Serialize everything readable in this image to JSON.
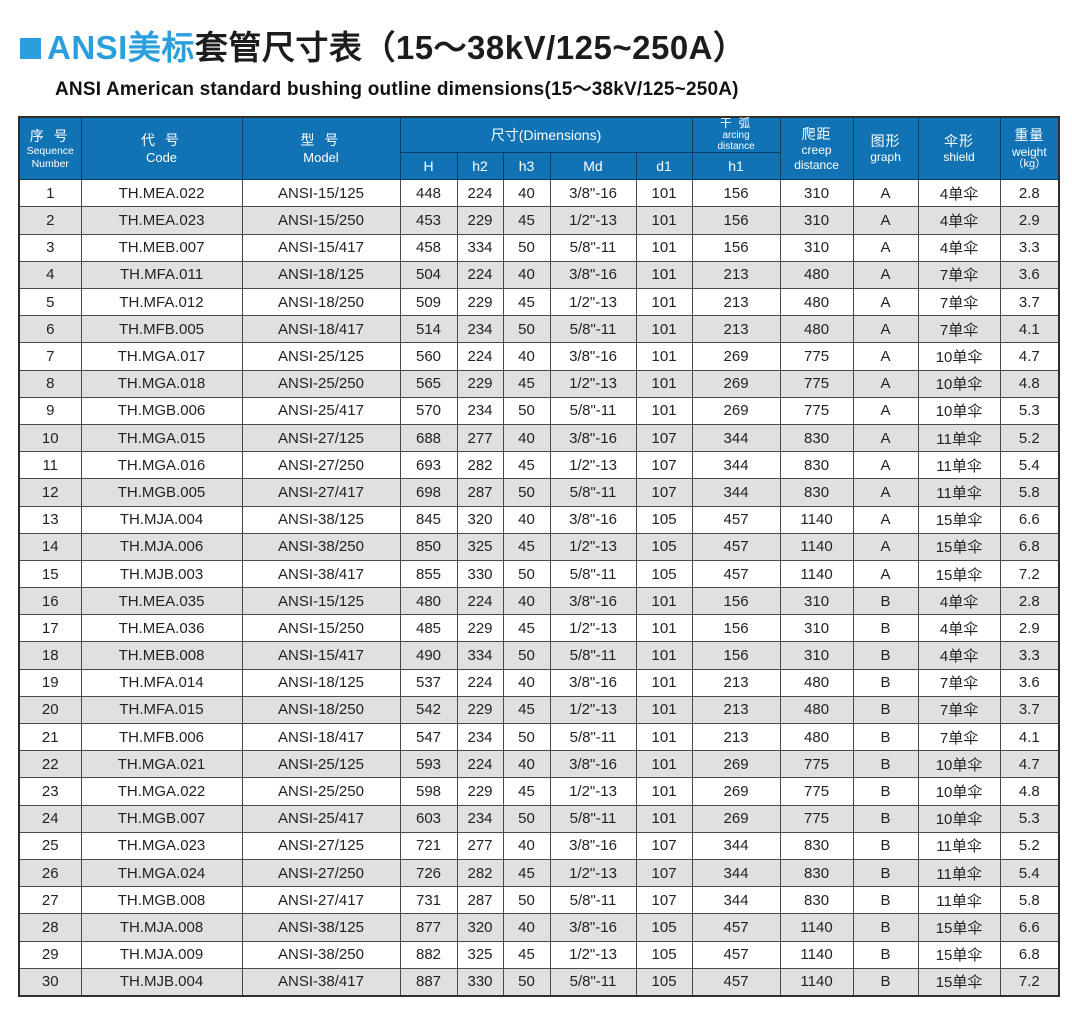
{
  "page": {
    "title_highlight": "ANSI美标",
    "title_rest": "套管尺寸表（15～38kV/125~250A）",
    "subtitle": "ANSI American standard  bushing outline dimensions(15～38kV/125~250A)"
  },
  "colors": {
    "header_blue": "#1172b4",
    "title_blue": "#2b9ede",
    "stripe_gray": "#e0e0e0"
  },
  "table": {
    "headers": {
      "seq_cn": "序 号",
      "seq_en1": "Sequence",
      "seq_en2": "Number",
      "code_cn": "代 号",
      "code_en": "Code",
      "model_cn": "型 号",
      "model_en": "Model",
      "dims_group": "尺寸(Dimensions)",
      "col_h": "H",
      "col_h2": "h2",
      "col_h3": "h3",
      "col_md": "Md",
      "col_d1": "d1",
      "arc_cn": "干 弧",
      "arc_en1": "arcing",
      "arc_en2": "distance",
      "col_h1": "h1",
      "creep_cn": "爬距",
      "creep_en1": "creep",
      "creep_en2": "distance",
      "graph_cn": "图形",
      "graph_en": "graph",
      "shield_cn": "伞形",
      "shield_en": "shield",
      "weight_cn": "重量",
      "weight_en": "weight",
      "weight_unit": "（kg）"
    },
    "rows": [
      [
        "1",
        "TH.MEA.022",
        "ANSI-15/125",
        "448",
        "224",
        "40",
        "3/8\"-16",
        "101",
        "156",
        "310",
        "A",
        "4单伞",
        "2.8"
      ],
      [
        "2",
        "TH.MEA.023",
        "ANSI-15/250",
        "453",
        "229",
        "45",
        "1/2\"-13",
        "101",
        "156",
        "310",
        "A",
        "4单伞",
        "2.9"
      ],
      [
        "3",
        "TH.MEB.007",
        "ANSI-15/417",
        "458",
        "334",
        "50",
        "5/8\"-11",
        "101",
        "156",
        "310",
        "A",
        "4单伞",
        "3.3"
      ],
      [
        "4",
        "TH.MFA.011",
        "ANSI-18/125",
        "504",
        "224",
        "40",
        "3/8\"-16",
        "101",
        "213",
        "480",
        "A",
        "7单伞",
        "3.6"
      ],
      [
        "5",
        "TH.MFA.012",
        "ANSI-18/250",
        "509",
        "229",
        "45",
        "1/2\"-13",
        "101",
        "213",
        "480",
        "A",
        "7单伞",
        "3.7"
      ],
      [
        "6",
        "TH.MFB.005",
        "ANSI-18/417",
        "514",
        "234",
        "50",
        "5/8\"-11",
        "101",
        "213",
        "480",
        "A",
        "7单伞",
        "4.1"
      ],
      [
        "7",
        "TH.MGA.017",
        "ANSI-25/125",
        "560",
        "224",
        "40",
        "3/8\"-16",
        "101",
        "269",
        "775",
        "A",
        "10单伞",
        "4.7"
      ],
      [
        "8",
        "TH.MGA.018",
        "ANSI-25/250",
        "565",
        "229",
        "45",
        "1/2\"-13",
        "101",
        "269",
        "775",
        "A",
        "10单伞",
        "4.8"
      ],
      [
        "9",
        "TH.MGB.006",
        "ANSI-25/417",
        "570",
        "234",
        "50",
        "5/8\"-11",
        "101",
        "269",
        "775",
        "A",
        "10单伞",
        "5.3"
      ],
      [
        "10",
        "TH.MGA.015",
        "ANSI-27/125",
        "688",
        "277",
        "40",
        "3/8\"-16",
        "107",
        "344",
        "830",
        "A",
        "11单伞",
        "5.2"
      ],
      [
        "11",
        "TH.MGA.016",
        "ANSI-27/250",
        "693",
        "282",
        "45",
        "1/2\"-13",
        "107",
        "344",
        "830",
        "A",
        "11单伞",
        "5.4"
      ],
      [
        "12",
        "TH.MGB.005",
        "ANSI-27/417",
        "698",
        "287",
        "50",
        "5/8\"-11",
        "107",
        "344",
        "830",
        "A",
        "11单伞",
        "5.8"
      ],
      [
        "13",
        "TH.MJA.004",
        "ANSI-38/125",
        "845",
        "320",
        "40",
        "3/8\"-16",
        "105",
        "457",
        "1140",
        "A",
        "15单伞",
        "6.6"
      ],
      [
        "14",
        "TH.MJA.006",
        "ANSI-38/250",
        "850",
        "325",
        "45",
        "1/2\"-13",
        "105",
        "457",
        "1140",
        "A",
        "15单伞",
        "6.8"
      ],
      [
        "15",
        "TH.MJB.003",
        "ANSI-38/417",
        "855",
        "330",
        "50",
        "5/8\"-11",
        "105",
        "457",
        "1140",
        "A",
        "15单伞",
        "7.2"
      ],
      [
        "16",
        "TH.MEA.035",
        "ANSI-15/125",
        "480",
        "224",
        "40",
        "3/8\"-16",
        "101",
        "156",
        "310",
        "B",
        "4单伞",
        "2.8"
      ],
      [
        "17",
        "TH.MEA.036",
        "ANSI-15/250",
        "485",
        "229",
        "45",
        "1/2\"-13",
        "101",
        "156",
        "310",
        "B",
        "4单伞",
        "2.9"
      ],
      [
        "18",
        "TH.MEB.008",
        "ANSI-15/417",
        "490",
        "334",
        "50",
        "5/8\"-11",
        "101",
        "156",
        "310",
        "B",
        "4单伞",
        "3.3"
      ],
      [
        "19",
        "TH.MFA.014",
        "ANSI-18/125",
        "537",
        "224",
        "40",
        "3/8\"-16",
        "101",
        "213",
        "480",
        "B",
        "7单伞",
        "3.6"
      ],
      [
        "20",
        "TH.MFA.015",
        "ANSI-18/250",
        "542",
        "229",
        "45",
        "1/2\"-13",
        "101",
        "213",
        "480",
        "B",
        "7单伞",
        "3.7"
      ],
      [
        "21",
        "TH.MFB.006",
        "ANSI-18/417",
        "547",
        "234",
        "50",
        "5/8\"-11",
        "101",
        "213",
        "480",
        "B",
        "7单伞",
        "4.1"
      ],
      [
        "22",
        "TH.MGA.021",
        "ANSI-25/125",
        "593",
        "224",
        "40",
        "3/8\"-16",
        "101",
        "269",
        "775",
        "B",
        "10单伞",
        "4.7"
      ],
      [
        "23",
        "TH.MGA.022",
        "ANSI-25/250",
        "598",
        "229",
        "45",
        "1/2\"-13",
        "101",
        "269",
        "775",
        "B",
        "10单伞",
        "4.8"
      ],
      [
        "24",
        "TH.MGB.007",
        "ANSI-25/417",
        "603",
        "234",
        "50",
        "5/8\"-11",
        "101",
        "269",
        "775",
        "B",
        "10单伞",
        "5.3"
      ],
      [
        "25",
        "TH.MGA.023",
        "ANSI-27/125",
        "721",
        "277",
        "40",
        "3/8\"-16",
        "107",
        "344",
        "830",
        "B",
        "11单伞",
        "5.2"
      ],
      [
        "26",
        "TH.MGA.024",
        "ANSI-27/250",
        "726",
        "282",
        "45",
        "1/2\"-13",
        "107",
        "344",
        "830",
        "B",
        "11单伞",
        "5.4"
      ],
      [
        "27",
        "TH.MGB.008",
        "ANSI-27/417",
        "731",
        "287",
        "50",
        "5/8\"-11",
        "107",
        "344",
        "830",
        "B",
        "11单伞",
        "5.8"
      ],
      [
        "28",
        "TH.MJA.008",
        "ANSI-38/125",
        "877",
        "320",
        "40",
        "3/8\"-16",
        "105",
        "457",
        "1140",
        "B",
        "15单伞",
        "6.6"
      ],
      [
        "29",
        "TH.MJA.009",
        "ANSI-38/250",
        "882",
        "325",
        "45",
        "1/2\"-13",
        "105",
        "457",
        "1140",
        "B",
        "15单伞",
        "6.8"
      ],
      [
        "30",
        "TH.MJB.004",
        "ANSI-38/417",
        "887",
        "330",
        "50",
        "5/8\"-11",
        "105",
        "457",
        "1140",
        "B",
        "15单伞",
        "7.2"
      ]
    ]
  }
}
